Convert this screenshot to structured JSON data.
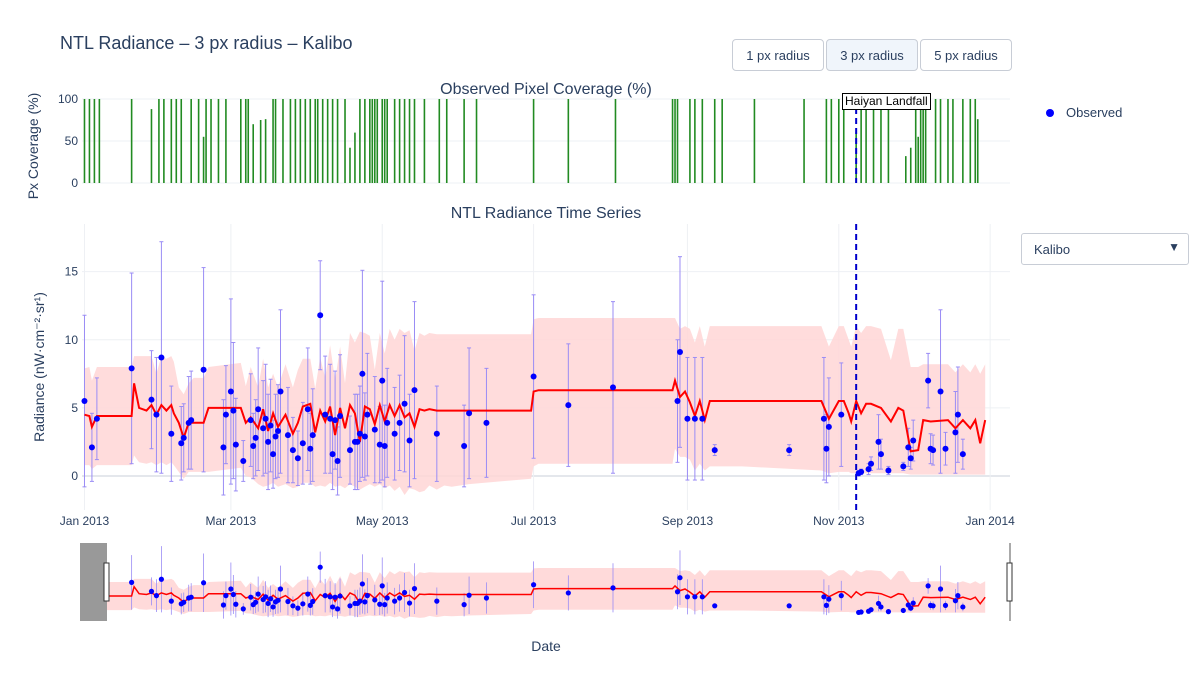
{
  "page": {
    "title": "NTL Radiance – 3 px radius – Kalibo",
    "buttons": [
      {
        "label": "1 px radius",
        "active": false
      },
      {
        "label": "3 px radius",
        "active": true
      },
      {
        "label": "5 px radius",
        "active": false
      }
    ],
    "legend": {
      "observed_label": "Observed",
      "observed_color": "#0000ff"
    },
    "dropdown": {
      "selected": "Kalibo",
      "arrow": "▼"
    },
    "annotation": {
      "text": "Haiyan Landfall",
      "date": "2013-11-08"
    }
  },
  "chart_data": [
    {
      "type": "bar",
      "title": "Observed Pixel Coverage (%)",
      "ylabel": "Px Coverage (%)",
      "ylim": [
        0,
        100
      ],
      "yticks": [
        0,
        50,
        100
      ],
      "color": "#228b22",
      "x": [
        "2013-01-01",
        "2013-01-03",
        "2013-01-05",
        "2013-01-07",
        "2013-01-20",
        "2013-01-28",
        "2013-01-31",
        "2013-02-02",
        "2013-02-05",
        "2013-02-07",
        "2013-02-09",
        "2013-02-13",
        "2013-02-16",
        "2013-02-18",
        "2013-02-19",
        "2013-02-21",
        "2013-02-24",
        "2013-02-27",
        "2013-03-05",
        "2013-03-07",
        "2013-03-08",
        "2013-03-10",
        "2013-03-13",
        "2013-03-15",
        "2013-03-18",
        "2013-03-19",
        "2013-03-22",
        "2013-03-25",
        "2013-03-27",
        "2013-03-29",
        "2013-03-31",
        "2013-04-02",
        "2013-04-04",
        "2013-04-05",
        "2013-04-07",
        "2013-04-09",
        "2013-04-11",
        "2013-04-13",
        "2013-04-16",
        "2013-04-18",
        "2013-04-20",
        "2013-04-22",
        "2013-04-24",
        "2013-04-26",
        "2013-04-27",
        "2013-04-28",
        "2013-04-29",
        "2013-05-01",
        "2013-05-02",
        "2013-05-03",
        "2013-05-06",
        "2013-05-08",
        "2013-05-10",
        "2013-05-12",
        "2013-05-14",
        "2013-05-18",
        "2013-05-24",
        "2013-05-27",
        "2013-06-03",
        "2013-06-08",
        "2013-07-01",
        "2013-07-15",
        "2013-08-03",
        "2013-08-26",
        "2013-08-27",
        "2013-08-28",
        "2013-09-02",
        "2013-09-04",
        "2013-09-07",
        "2013-09-12",
        "2013-09-15",
        "2013-09-28",
        "2013-10-18",
        "2013-10-27",
        "2013-10-29",
        "2013-11-01",
        "2013-11-03",
        "2013-11-08",
        "2013-11-10",
        "2013-11-12",
        "2013-11-15",
        "2013-11-18",
        "2013-11-21",
        "2013-11-28",
        "2013-11-30",
        "2013-12-02",
        "2013-12-03",
        "2013-12-04",
        "2013-12-05",
        "2013-12-06",
        "2013-12-10",
        "2013-12-12",
        "2013-12-15",
        "2013-12-17",
        "2013-12-21",
        "2013-12-24",
        "2013-12-26",
        "2013-12-27"
      ],
      "values": [
        100,
        100,
        100,
        100,
        100,
        88,
        100,
        100,
        100,
        100,
        100,
        100,
        100,
        55,
        100,
        100,
        100,
        100,
        100,
        100,
        100,
        70,
        75,
        76,
        100,
        100,
        100,
        100,
        100,
        100,
        100,
        100,
        100,
        100,
        100,
        100,
        100,
        100,
        100,
        42,
        60,
        100,
        100,
        100,
        100,
        100,
        100,
        100,
        100,
        100,
        100,
        100,
        100,
        100,
        100,
        100,
        100,
        100,
        100,
        100,
        100,
        100,
        100,
        100,
        100,
        100,
        100,
        100,
        100,
        100,
        100,
        100,
        100,
        100,
        100,
        100,
        100,
        60,
        100,
        100,
        100,
        100,
        100,
        32,
        42,
        100,
        55,
        100,
        100,
        100,
        100,
        100,
        100,
        100,
        100,
        100,
        100,
        76
      ]
    },
    {
      "type": "line",
      "title": "NTL Radiance Time Series",
      "xlabel": "Date",
      "ylabel": "Radiance (nW·cm⁻²·sr¹)",
      "xlim": [
        "2012-12-31",
        "2014-01-09"
      ],
      "ylim": [
        -2.5,
        18.5
      ],
      "yticks": [
        0,
        5,
        10,
        15
      ],
      "xticks": [
        {
          "date": "2013-01-01",
          "label": "Jan 2013"
        },
        {
          "date": "2013-03-01",
          "label": "Mar 2013"
        },
        {
          "date": "2013-05-01",
          "label": "May 2013"
        },
        {
          "date": "2013-07-01",
          "label": "Jul 2013"
        },
        {
          "date": "2013-09-01",
          "label": "Sep 2013"
        },
        {
          "date": "2013-11-01",
          "label": "Nov 2013"
        },
        {
          "date": "2014-01-01",
          "label": "Jan 2014"
        }
      ],
      "colors": {
        "line": "#ff0000",
        "points": "#0000ff",
        "errorbar": "#9a8cf5",
        "band": "#ffd6d6"
      },
      "trend": {
        "x": [
          "2013-01-01",
          "2013-01-03",
          "2013-01-04",
          "2013-01-06",
          "2013-01-20",
          "2013-01-21",
          "2013-01-23",
          "2013-01-26",
          "2013-01-28",
          "2013-01-30",
          "2013-02-01",
          "2013-02-03",
          "2013-02-05",
          "2013-02-06",
          "2013-02-08",
          "2013-02-10",
          "2013-02-12",
          "2013-02-14",
          "2013-02-16",
          "2013-02-18",
          "2013-02-20",
          "2013-03-05",
          "2013-03-07",
          "2013-03-09",
          "2013-03-12",
          "2013-03-14",
          "2013-03-16",
          "2013-03-18",
          "2013-03-20",
          "2013-03-23",
          "2013-03-26",
          "2013-03-28",
          "2013-03-30",
          "2013-04-02",
          "2013-04-04",
          "2013-04-06",
          "2013-04-08",
          "2013-04-10",
          "2013-04-12",
          "2013-04-14",
          "2013-04-16",
          "2013-04-18",
          "2013-04-20",
          "2013-04-22",
          "2013-04-24",
          "2013-04-26",
          "2013-04-28",
          "2013-04-30",
          "2013-05-02",
          "2013-05-04",
          "2013-05-06",
          "2013-05-08",
          "2013-05-10",
          "2013-05-12",
          "2013-05-14",
          "2013-05-16",
          "2013-05-18",
          "2013-05-20",
          "2013-05-23",
          "2013-05-26",
          "2013-05-29",
          "2013-06-05",
          "2013-06-30",
          "2013-07-01",
          "2013-07-03",
          "2013-08-26",
          "2013-08-27",
          "2013-08-29",
          "2013-08-31",
          "2013-09-02",
          "2013-09-04",
          "2013-09-06",
          "2013-09-08",
          "2013-09-10",
          "2013-09-13",
          "2013-09-15",
          "2013-09-18",
          "2013-09-23",
          "2013-10-25",
          "2013-10-28",
          "2013-11-01",
          "2013-11-03",
          "2013-11-05",
          "2013-11-06",
          "2013-11-08",
          "2013-11-10",
          "2013-11-12",
          "2013-11-14",
          "2013-11-18",
          "2013-11-22",
          "2013-11-25",
          "2013-11-27",
          "2013-11-30",
          "2013-12-03",
          "2013-12-05",
          "2013-12-08",
          "2013-12-15",
          "2013-12-18",
          "2013-12-21",
          "2013-12-24",
          "2013-12-26",
          "2013-12-28",
          "2013-12-30"
        ],
        "y": [
          4.5,
          4.4,
          3.6,
          4.4,
          4.4,
          6.8,
          5.0,
          4.8,
          5.2,
          4.5,
          5.2,
          4.8,
          5.2,
          4.6,
          3.9,
          2.8,
          3.9,
          3.9,
          3.9,
          3.9,
          5.0,
          5.0,
          3.9,
          4.3,
          3.5,
          4.9,
          3.3,
          4.6,
          3.6,
          4.5,
          3.1,
          3.9,
          5.1,
          5.3,
          3.2,
          4.8,
          4.0,
          5.1,
          3.0,
          5.0,
          3.5,
          5.2,
          4.6,
          2.5,
          5.1,
          4.9,
          3.8,
          5.2,
          4.0,
          5.2,
          4.4,
          5.2,
          4.3,
          4.6,
          3.6,
          4.9,
          4.8,
          4.9,
          4.8,
          4.8,
          4.8,
          4.8,
          4.8,
          6.2,
          6.3,
          6.3,
          7.0,
          5.8,
          6.2,
          5.4,
          4.4,
          5.5,
          4.1,
          5.5,
          5.5,
          5.5,
          5.5,
          5.5,
          5.5,
          4.2,
          5.5,
          5.5,
          4.6,
          4.0,
          5.5,
          4.6,
          5.3,
          5.3,
          5.0,
          4.0,
          5.0,
          4.8,
          1.8,
          1.9,
          4.1,
          4.0,
          4.1,
          3.5,
          4.1,
          3.5,
          4.1,
          2.4,
          4.1
        ],
        "upper": [
          7.9,
          8.0,
          7.0,
          8.0,
          8.0,
          8.8,
          8.8,
          8.8,
          8.8,
          7.5,
          8.8,
          8.6,
          8.8,
          8.4,
          6.5,
          6.0,
          6.8,
          7.2,
          7.2,
          7.2,
          8.0,
          8.3,
          6.6,
          8.0,
          6.5,
          8.6,
          6.5,
          7.5,
          6.5,
          8.2,
          6.5,
          7.8,
          8.6,
          8.6,
          6.4,
          8.7,
          7.2,
          9.6,
          7.0,
          9.5,
          6.8,
          10.5,
          9.8,
          10.6,
          10.5,
          10.3,
          7.8,
          10.5,
          9.0,
          10.8,
          10.0,
          10.8,
          10.5,
          10.7,
          9.2,
          10.5,
          10.3,
          10.5,
          10.4,
          10.4,
          10.4,
          10.4,
          10.4,
          11.5,
          11.6,
          11.6,
          11.6,
          10.8,
          11.0,
          10.8,
          9.8,
          11.0,
          9.5,
          11.0,
          11.0,
          11.0,
          11.0,
          11.0,
          11.0,
          9.5,
          11.0,
          11.0,
          10.0,
          9.5,
          11.0,
          10.5,
          11.0,
          11.0,
          10.8,
          8.5,
          10.8,
          10.8,
          8.0,
          8.0,
          8.2,
          8.2,
          8.2,
          7.6,
          8.2,
          7.6,
          8.2,
          7.5,
          8.2
        ],
        "lower": [
          0.8,
          0.8,
          0.5,
          0.8,
          0.8,
          1.5,
          1.0,
          0.9,
          1.0,
          0.8,
          1.0,
          0.8,
          1.0,
          0.8,
          0.3,
          -0.2,
          0.3,
          0.3,
          0.3,
          0.3,
          0.3,
          0.6,
          0.0,
          -0.1,
          -0.6,
          -0.8,
          -0.7,
          -0.5,
          -0.8,
          -0.6,
          -0.9,
          -0.8,
          -0.5,
          -0.5,
          -0.8,
          -0.7,
          -0.8,
          -0.5,
          -0.8,
          -0.7,
          -0.9,
          -0.6,
          -0.8,
          -1.0,
          -0.8,
          -0.6,
          -0.8,
          -0.6,
          -0.9,
          -0.7,
          -1.1,
          -0.8,
          -1.4,
          -0.9,
          -1.0,
          -1.2,
          -1.1,
          -0.7,
          -1.0,
          -0.7,
          -0.8,
          -0.6,
          -0.2,
          0.7,
          0.9,
          0.9,
          2.0,
          1.4,
          1.4,
          1.2,
          0.4,
          0.9,
          0.4,
          0.7,
          0.7,
          0.7,
          0.7,
          0.7,
          0.4,
          0.2,
          0.3,
          0.3,
          0.3,
          0.2,
          0.2,
          0.2,
          0.2,
          0.2,
          0.2,
          0.2,
          0.2,
          0.2,
          0.1,
          0.1,
          0.1,
          0.1,
          0.1,
          0.1,
          0.1,
          0.1,
          0.1,
          0.1,
          0.1
        ]
      },
      "observed": {
        "name": "Observed",
        "x": [
          "2013-01-01",
          "2013-01-04",
          "2013-01-06",
          "2013-01-20",
          "2013-01-28",
          "2013-01-30",
          "2013-02-01",
          "2013-02-05",
          "2013-02-09",
          "2013-02-10",
          "2013-02-12",
          "2013-02-13",
          "2013-02-18",
          "2013-02-26",
          "2013-02-27",
          "2013-03-01",
          "2013-03-02",
          "2013-03-03",
          "2013-03-06",
          "2013-03-09",
          "2013-03-10",
          "2013-03-11",
          "2013-03-12",
          "2013-03-14",
          "2013-03-15",
          "2013-03-16",
          "2013-03-17",
          "2013-03-18",
          "2013-03-19",
          "2013-03-20",
          "2013-03-21",
          "2013-03-24",
          "2013-03-26",
          "2013-03-28",
          "2013-03-30",
          "2013-04-01",
          "2013-04-02",
          "2013-04-03",
          "2013-04-06",
          "2013-04-08",
          "2013-04-10",
          "2013-04-11",
          "2013-04-12",
          "2013-04-13",
          "2013-04-14",
          "2013-04-18",
          "2013-04-20",
          "2013-04-21",
          "2013-04-22",
          "2013-04-23",
          "2013-04-24",
          "2013-04-25",
          "2013-04-28",
          "2013-04-30",
          "2013-05-01",
          "2013-05-02",
          "2013-05-03",
          "2013-05-06",
          "2013-05-08",
          "2013-05-10",
          "2013-05-12",
          "2013-05-14",
          "2013-05-23",
          "2013-06-03",
          "2013-06-05",
          "2013-06-12",
          "2013-07-01",
          "2013-07-15",
          "2013-08-02",
          "2013-08-28",
          "2013-08-29",
          "2013-09-01",
          "2013-09-04",
          "2013-09-07",
          "2013-09-12",
          "2013-10-12",
          "2013-10-26",
          "2013-10-27",
          "2013-10-28",
          "2013-11-02",
          "2013-11-09",
          "2013-11-10",
          "2013-11-13",
          "2013-11-14",
          "2013-11-17",
          "2013-11-18",
          "2013-11-21",
          "2013-11-27",
          "2013-11-29",
          "2013-11-30",
          "2013-12-01",
          "2013-12-07",
          "2013-12-08",
          "2013-12-09",
          "2013-12-12",
          "2013-12-14",
          "2013-12-18",
          "2013-12-19",
          "2013-12-21"
        ],
        "y": [
          5.5,
          2.1,
          4.2,
          7.9,
          5.6,
          4.5,
          8.7,
          3.1,
          2.4,
          2.8,
          3.9,
          4.1,
          7.8,
          2.1,
          4.5,
          6.2,
          4.8,
          2.3,
          1.1,
          4.1,
          2.2,
          2.8,
          4.9,
          3.5,
          4.2,
          2.5,
          3.7,
          1.6,
          2.9,
          3.3,
          6.2,
          3.0,
          1.9,
          1.3,
          2.4,
          4.9,
          2.0,
          3.0,
          11.8,
          4.5,
          4.2,
          1.6,
          4.1,
          1.1,
          4.4,
          1.9,
          2.5,
          2.5,
          3.1,
          7.5,
          2.9,
          4.5,
          3.4,
          2.3,
          7.0,
          2.2,
          3.9,
          3.1,
          3.9,
          5.3,
          2.6,
          6.3,
          3.1,
          2.2,
          4.6,
          3.9,
          7.3,
          5.2,
          6.5,
          5.5,
          9.1,
          4.2,
          4.2,
          4.2,
          1.9,
          1.9,
          4.2,
          2.0,
          3.6,
          4.5,
          0.2,
          0.3,
          0.5,
          0.9,
          2.5,
          1.6,
          0.4,
          0.7,
          2.1,
          1.3,
          2.6,
          7.0,
          2.0,
          1.9,
          6.2,
          2.0,
          3.2,
          4.5,
          1.6
        ],
        "err": [
          6.3,
          2.5,
          3.0,
          7.0,
          3.6,
          4.2,
          8.5,
          3.5,
          2.7,
          2.5,
          3.4,
          3.6,
          7.5,
          3.5,
          3.6,
          6.8,
          5.0,
          3.4,
          1.5,
          3.4,
          2.4,
          2.8,
          4.5,
          3.5,
          4.0,
          3.5,
          3.4,
          2.5,
          3.1,
          3.4,
          6.0,
          3.5,
          2.4,
          2.0,
          3.0,
          4.5,
          2.6,
          3.4,
          4.0,
          4.3,
          4.0,
          2.6,
          3.6,
          2.5,
          4.5,
          2.5,
          3.5,
          3.5,
          3.5,
          7.6,
          3.2,
          4.5,
          3.9,
          2.8,
          7.3,
          3.0,
          4.0,
          3.4,
          3.5,
          5.0,
          3.4,
          6.5,
          3.5,
          3.0,
          4.8,
          4.0,
          6.0,
          4.5,
          6.3,
          4.5,
          7.0,
          4.5,
          4.5,
          4.5,
          0.4,
          0.4,
          4.5,
          2.5,
          3.6,
          3.8,
          0.2,
          0.2,
          0.4,
          0.5,
          2.0,
          1.1,
          0.3,
          0.3,
          1.4,
          0.8,
          1.5,
          2.0,
          1.1,
          1.1,
          6.0,
          1.2,
          3.0,
          3.5,
          1.1
        ]
      }
    }
  ]
}
